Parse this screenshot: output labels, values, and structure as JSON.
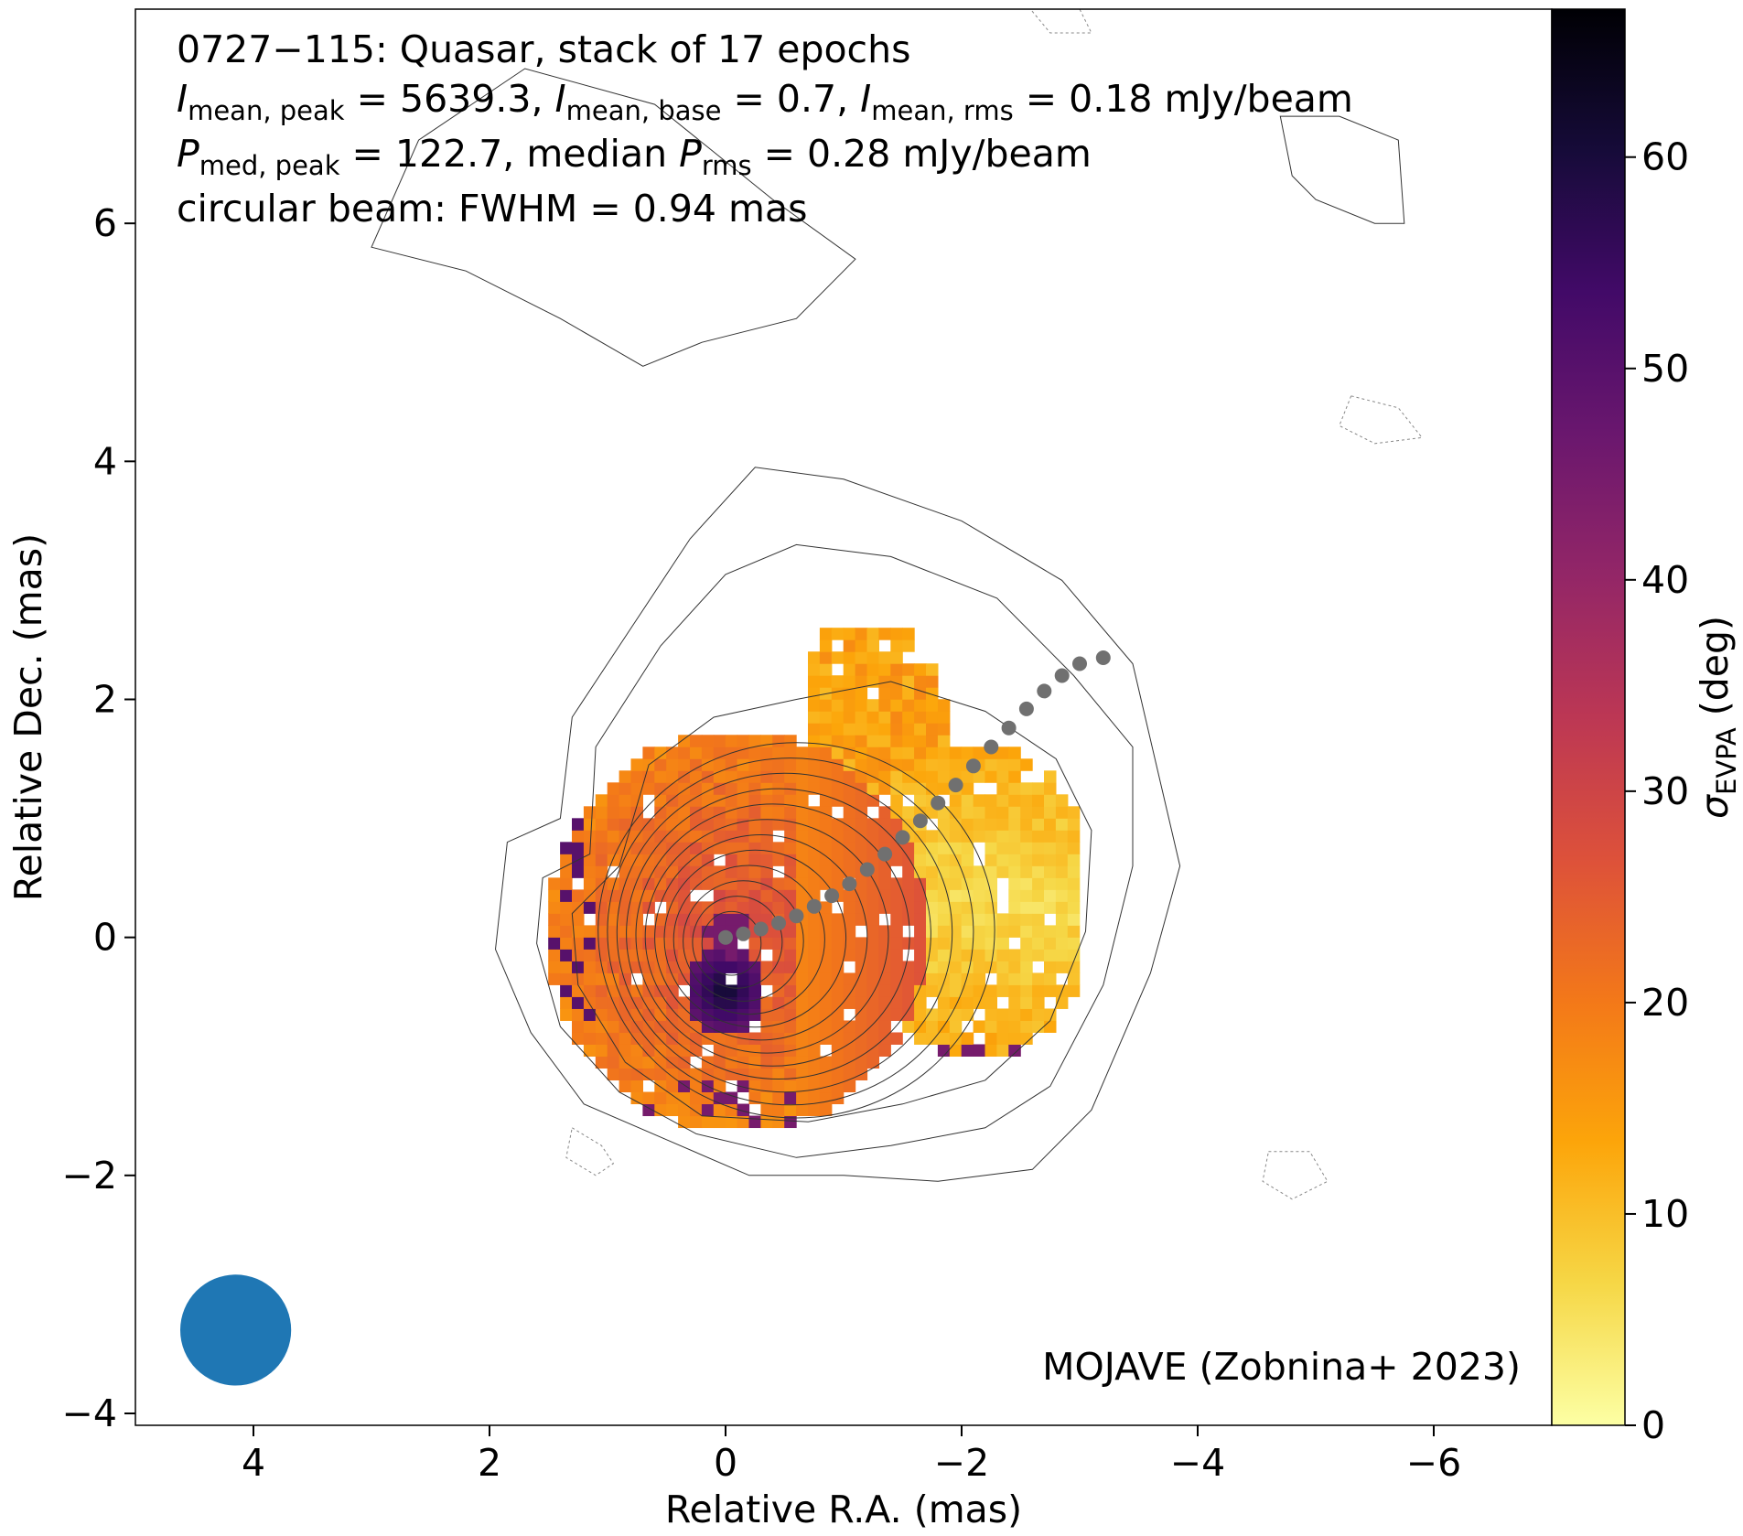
{
  "chart_data": {
    "type": "heatmap",
    "title_lines": [
      "0727−115: Quasar, stack of 17 epochs",
      "I_mean,peak = 5639.3, I_mean,base = 0.7, I_mean,rms = 0.18 mJy/beam",
      "P_med,peak = 122.7, median P_rms = 0.28 mJy/beam",
      "circular beam: FWHM = 0.94 mas"
    ],
    "title": {
      "line1": "0727−115: Quasar, stack of 17 epochs",
      "line2": {
        "i_sym1": "I",
        "i_sub1": "mean, peak",
        "i_val1": " = 5639.3, ",
        "i_sym2": "I",
        "i_sub2": "mean, base",
        "i_val2": " = 0.7, ",
        "i_sym3": "I",
        "i_sub3": "mean, rms",
        "i_val3": " = 0.18 mJy/beam"
      },
      "line3": {
        "p_sym1": "P",
        "p_sub1": "med, peak",
        "p_val1": " = 122.7, median ",
        "p_sym2": "P",
        "p_sub2": "rms",
        "p_val2": " = 0.28 mJy/beam"
      },
      "line4": "circular beam: FWHM = 0.94 mas"
    },
    "xlabel": "Relative R.A. (mas)",
    "ylabel": "Relative Dec. (mas)",
    "xlim": [
      5.0,
      -7.0
    ],
    "ylim": [
      -4.1,
      7.8
    ],
    "xticks": [
      4,
      2,
      0,
      -2,
      -4,
      -6
    ],
    "xtick_labels": [
      "4",
      "2",
      "0",
      "−2",
      "−4",
      "−6"
    ],
    "yticks": [
      -4,
      -2,
      0,
      2,
      4,
      6
    ],
    "ytick_labels": [
      "−4",
      "−2",
      "0",
      "2",
      "4",
      "6"
    ],
    "colorbar": {
      "label_sym": "σ",
      "label_sub": "EVPA",
      "label_unit": " (deg)",
      "range": [
        0,
        67
      ],
      "ticks": [
        0,
        10,
        20,
        30,
        40,
        50,
        60
      ],
      "tick_labels": [
        "0",
        "10",
        "20",
        "30",
        "40",
        "50",
        "60"
      ],
      "colormap": "inferno_r"
    },
    "beam": {
      "x": 4.15,
      "y": -3.3,
      "fwhm": 0.94,
      "color": "#1f77b4"
    },
    "ridgeline": {
      "color": "#707070",
      "points": [
        [
          0.0,
          0.0
        ],
        [
          -0.15,
          0.03
        ],
        [
          -0.3,
          0.07
        ],
        [
          -0.45,
          0.12
        ],
        [
          -0.6,
          0.18
        ],
        [
          -0.75,
          0.26
        ],
        [
          -0.9,
          0.35
        ],
        [
          -1.05,
          0.45
        ],
        [
          -1.2,
          0.57
        ],
        [
          -1.35,
          0.7
        ],
        [
          -1.5,
          0.84
        ],
        [
          -1.65,
          0.98
        ],
        [
          -1.8,
          1.13
        ],
        [
          -1.95,
          1.28
        ],
        [
          -2.1,
          1.44
        ],
        [
          -2.25,
          1.6
        ],
        [
          -2.4,
          1.76
        ],
        [
          -2.55,
          1.92
        ],
        [
          -2.7,
          2.07
        ],
        [
          -2.85,
          2.2
        ],
        [
          -3.0,
          2.3
        ],
        [
          -3.2,
          2.35
        ]
      ]
    },
    "credit": "MOJAVE (Zobnina+ 2023)",
    "contour_color": "#333333"
  }
}
